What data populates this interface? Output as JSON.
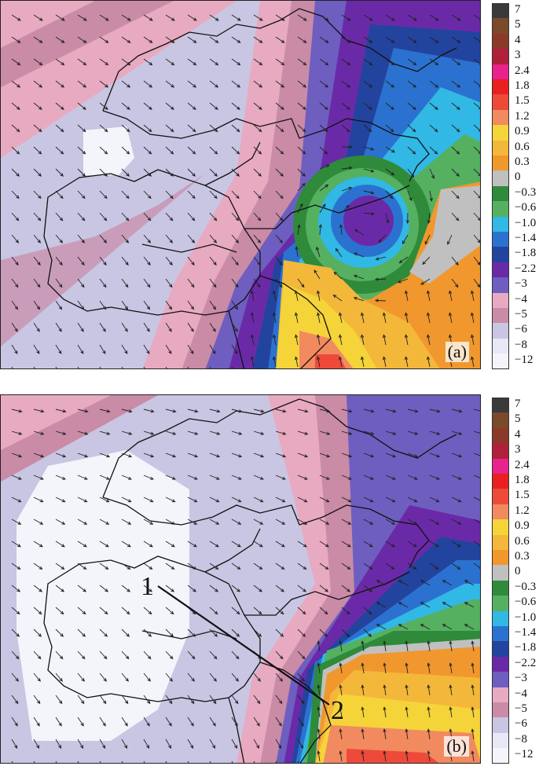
{
  "colorbar": {
    "levels": [
      "7",
      "5",
      "4",
      "3",
      "2.4",
      "1.8",
      "1.5",
      "1.2",
      "0.9",
      "0.6",
      "0.3",
      "0",
      "−0.3",
      "−0.6",
      "−1.0",
      "−1.4",
      "−1.8",
      "−2.2",
      "−3",
      "−4",
      "−5",
      "−6",
      "−8",
      "−12"
    ],
    "colors": [
      "#3a3a3a",
      "#7a4a2a",
      "#8b3a2a",
      "#b0203a",
      "#e8238c",
      "#e82020",
      "#ee4a3a",
      "#f28a60",
      "#f5d43a",
      "#f3b83a",
      "#f0982e",
      "#c0c0c0",
      "#2f8a3a",
      "#55b060",
      "#31b8e4",
      "#2b72d0",
      "#23449e",
      "#6a2aa8",
      "#6e5ec0",
      "#e8aac0",
      "#c98ba6",
      "#c8c6e3",
      "#e8e8f6",
      "#f4f4fb"
    ]
  },
  "panels": [
    {
      "id": "a",
      "label": "(a)"
    },
    {
      "id": "b",
      "label": "(b)",
      "cross_section": {
        "start_label": "1",
        "end_label": "2"
      }
    }
  ]
}
